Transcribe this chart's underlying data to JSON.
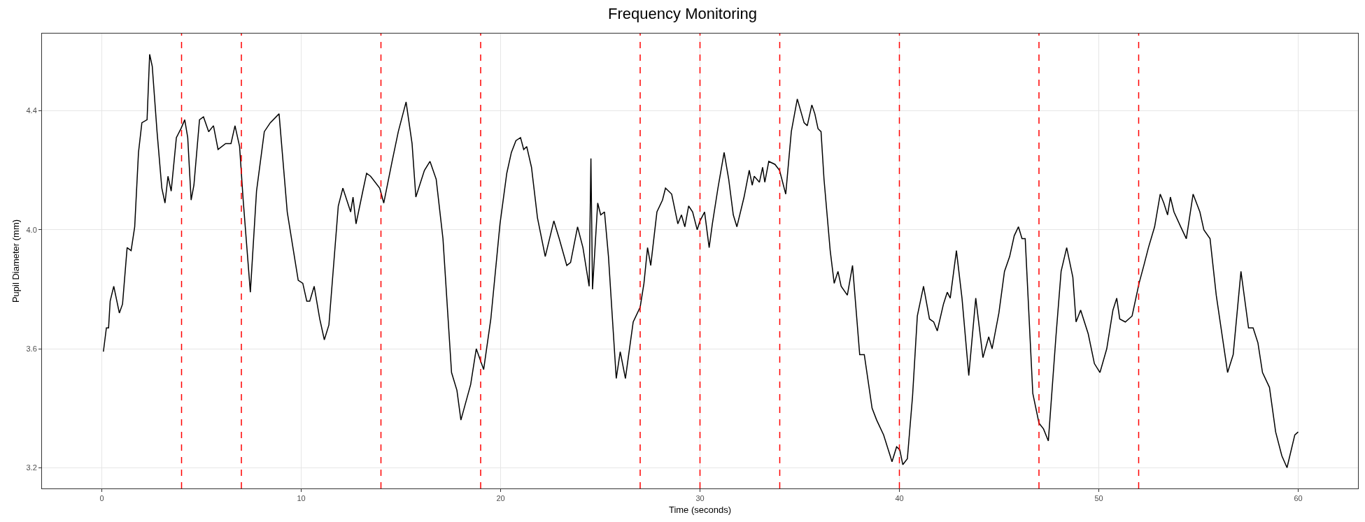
{
  "chart_data": {
    "type": "line",
    "title": "Frequency Monitoring",
    "xlabel": "Time (seconds)",
    "ylabel": "Pupil Diameter (mm)",
    "x": [
      0.08,
      0.23,
      0.34,
      0.42,
      0.6,
      0.88,
      1.04,
      1.27,
      1.47,
      1.65,
      1.84,
      2.01,
      2.27,
      2.4,
      2.53,
      2.77,
      3.01,
      3.17,
      3.32,
      3.48,
      3.74,
      3.97,
      4.16,
      4.31,
      4.48,
      4.62,
      4.9,
      5.1,
      5.36,
      5.6,
      5.83,
      6.21,
      6.48,
      6.68,
      6.91,
      7.09,
      7.45,
      7.76,
      8.15,
      8.45,
      8.89,
      9.3,
      9.61,
      9.85,
      10.08,
      10.28,
      10.43,
      10.65,
      10.93,
      11.16,
      11.39,
      11.86,
      12.09,
      12.48,
      12.6,
      12.75,
      13.09,
      13.28,
      13.48,
      13.94,
      14.14,
      14.56,
      14.87,
      15.26,
      15.56,
      15.75,
      16.18,
      16.46,
      16.77,
      17.11,
      17.54,
      17.81,
      18.01,
      18.5,
      18.78,
      19.15,
      19.51,
      19.97,
      20.31,
      20.54,
      20.77,
      21.0,
      21.16,
      21.31,
      21.55,
      21.85,
      22.24,
      22.67,
      22.94,
      23.32,
      23.51,
      23.86,
      24.13,
      24.44,
      24.53,
      24.61,
      24.87,
      25.02,
      25.21,
      25.41,
      25.8,
      26.0,
      26.26,
      26.65,
      27.0,
      27.19,
      27.37,
      27.53,
      27.84,
      28.12,
      28.27,
      28.58,
      28.89,
      29.07,
      29.24,
      29.43,
      29.63,
      29.86,
      30.0,
      30.23,
      30.46,
      30.62,
      30.9,
      31.21,
      31.44,
      31.67,
      31.85,
      32.21,
      32.47,
      32.62,
      32.72,
      32.98,
      33.14,
      33.25,
      33.45,
      33.76,
      33.99,
      34.3,
      34.58,
      34.88,
      35.22,
      35.38,
      35.61,
      35.76,
      35.92,
      36.07,
      36.22,
      36.53,
      36.73,
      36.92,
      37.08,
      37.39,
      37.65,
      38.01,
      38.24,
      38.63,
      38.86,
      39.21,
      39.63,
      39.86,
      40.02,
      40.17,
      40.4,
      40.66,
      40.9,
      41.21,
      41.51,
      41.72,
      41.9,
      42.21,
      42.4,
      42.55,
      42.86,
      43.14,
      43.48,
      43.83,
      44.19,
      44.48,
      44.65,
      44.99,
      45.27,
      45.53,
      45.76,
      45.97,
      46.15,
      46.31,
      46.69,
      47.0,
      47.23,
      47.47,
      47.85,
      48.11,
      48.39,
      48.7,
      48.86,
      49.09,
      49.47,
      49.78,
      50.06,
      50.4,
      50.71,
      50.9,
      51.05,
      51.33,
      51.67,
      52.02,
      52.26,
      52.49,
      52.8,
      53.08,
      53.26,
      53.45,
      53.59,
      53.77,
      54.11,
      54.39,
      54.73,
      55.07,
      55.27,
      55.58,
      55.89,
      56.46,
      56.74,
      57.13,
      57.51,
      57.74,
      57.98,
      58.21,
      58.56,
      58.87,
      59.18,
      59.44,
      59.83,
      60.0
    ],
    "series": [
      {
        "color": "#000000",
        "values": [
          3.59,
          3.67,
          3.67,
          3.76,
          3.81,
          3.72,
          3.75,
          3.94,
          3.93,
          4.01,
          4.26,
          4.36,
          4.37,
          4.59,
          4.55,
          4.33,
          4.14,
          4.09,
          4.18,
          4.13,
          4.31,
          4.34,
          4.37,
          4.31,
          4.1,
          4.15,
          4.37,
          4.38,
          4.33,
          4.35,
          4.27,
          4.29,
          4.29,
          4.35,
          4.28,
          4.1,
          3.79,
          4.13,
          4.33,
          4.36,
          4.39,
          4.06,
          3.93,
          3.83,
          3.82,
          3.76,
          3.76,
          3.81,
          3.7,
          3.63,
          3.68,
          4.08,
          4.14,
          4.06,
          4.11,
          4.02,
          4.13,
          4.19,
          4.18,
          4.14,
          4.09,
          4.23,
          4.33,
          4.43,
          4.29,
          4.11,
          4.2,
          4.23,
          4.17,
          3.97,
          3.52,
          3.46,
          3.36,
          3.48,
          3.6,
          3.53,
          3.7,
          4.02,
          4.19,
          4.26,
          4.3,
          4.31,
          4.27,
          4.28,
          4.21,
          4.04,
          3.91,
          4.03,
          3.97,
          3.88,
          3.89,
          4.01,
          3.94,
          3.81,
          4.24,
          3.8,
          4.09,
          4.05,
          4.06,
          3.91,
          3.5,
          3.59,
          3.5,
          3.69,
          3.74,
          3.82,
          3.94,
          3.88,
          4.06,
          4.1,
          4.14,
          4.12,
          4.02,
          4.05,
          4.01,
          4.08,
          4.06,
          4.0,
          4.03,
          4.06,
          3.94,
          4.02,
          4.14,
          4.26,
          4.17,
          4.05,
          4.01,
          4.11,
          4.2,
          4.15,
          4.18,
          4.16,
          4.21,
          4.16,
          4.23,
          4.22,
          4.2,
          4.12,
          4.33,
          4.44,
          4.36,
          4.35,
          4.42,
          4.39,
          4.34,
          4.33,
          4.17,
          3.93,
          3.82,
          3.86,
          3.81,
          3.78,
          3.88,
          3.58,
          3.58,
          3.4,
          3.36,
          3.31,
          3.22,
          3.27,
          3.26,
          3.21,
          3.23,
          3.44,
          3.71,
          3.81,
          3.7,
          3.69,
          3.66,
          3.75,
          3.79,
          3.77,
          3.93,
          3.77,
          3.51,
          3.77,
          3.57,
          3.64,
          3.6,
          3.72,
          3.86,
          3.91,
          3.98,
          4.01,
          3.97,
          3.97,
          3.45,
          3.35,
          3.33,
          3.29,
          3.64,
          3.86,
          3.94,
          3.84,
          3.69,
          3.73,
          3.65,
          3.55,
          3.52,
          3.6,
          3.73,
          3.77,
          3.7,
          3.69,
          3.71,
          3.82,
          3.88,
          3.94,
          4.01,
          4.12,
          4.09,
          4.05,
          4.11,
          4.06,
          4.01,
          3.97,
          4.12,
          4.06,
          4.0,
          3.97,
          3.78,
          3.52,
          3.58,
          3.86,
          3.67,
          3.67,
          3.62,
          3.52,
          3.47,
          3.32,
          3.24,
          3.2,
          3.31,
          3.32
        ]
      }
    ],
    "xlim": [
      -3,
      63
    ],
    "xticks": [
      0,
      10,
      20,
      30,
      40,
      50,
      60
    ],
    "ylim": [
      3.13,
      4.66
    ],
    "yticks": [
      {
        "value": 3.2,
        "label": "3.2"
      },
      {
        "value": 3.6,
        "label": "3.6"
      },
      {
        "value": 4,
        "label": "4.0"
      },
      {
        "value": 4.4,
        "label": "4.4"
      }
    ],
    "ref_lines": [
      {
        "axis": "x",
        "value": 4,
        "color": "#ff0000",
        "line_style": "dashed"
      },
      {
        "axis": "x",
        "value": 7,
        "color": "#ff0000",
        "line_style": "dashed"
      },
      {
        "axis": "x",
        "value": 14,
        "color": "#ff0000",
        "line_style": "dashed"
      },
      {
        "axis": "x",
        "value": 19,
        "color": "#ff0000",
        "line_style": "dashed"
      },
      {
        "axis": "x",
        "value": 27,
        "color": "#ff0000",
        "line_style": "dashed"
      },
      {
        "axis": "x",
        "value": 30,
        "color": "#ff0000",
        "line_style": "dashed"
      },
      {
        "axis": "x",
        "value": 34,
        "color": "#ff0000",
        "line_style": "dashed"
      },
      {
        "axis": "x",
        "value": 40,
        "color": "#ff0000",
        "line_style": "dashed"
      },
      {
        "axis": "x",
        "value": 47,
        "color": "#ff0000",
        "line_style": "dashed"
      },
      {
        "axis": "x",
        "value": 52,
        "color": "#ff0000",
        "line_style": "dashed"
      }
    ],
    "grid": true,
    "line_style": "solid",
    "marker": "none"
  }
}
